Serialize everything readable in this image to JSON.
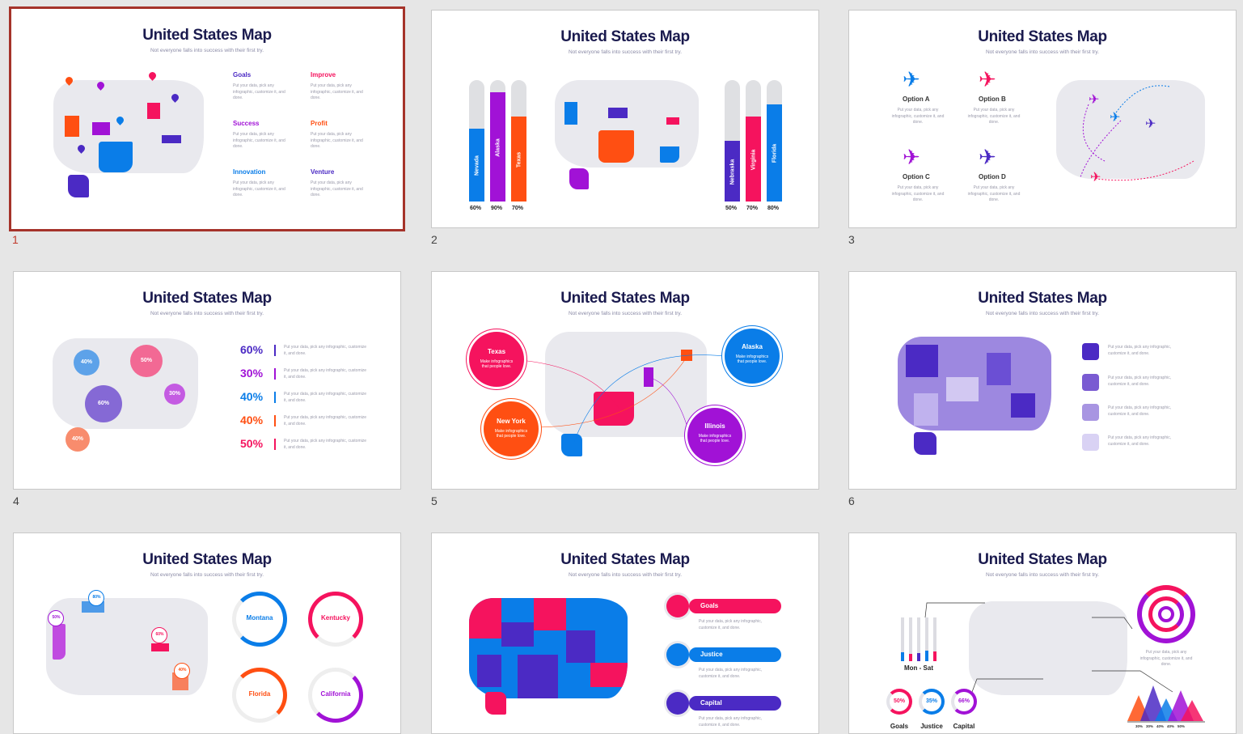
{
  "common": {
    "title": "United States Map",
    "subtitle": "Not everyone falls into success with their first try.",
    "desc_a": "Put your data, pick any infographic, customize it, and done.",
    "desc_b": "Make infographics that people love."
  },
  "colors": {
    "blue": "#0a7de8",
    "purple": "#4b2ac4",
    "violet": "#a112d6",
    "red": "#f5135e",
    "orange": "#ff4f12",
    "lightgray": "#e9e9ee",
    "selected_border": "#a5332a"
  },
  "slides": [
    {
      "num": "1",
      "selected": true,
      "labels": [
        "Goals",
        "Improve",
        "Success",
        "Profit",
        "Innovation",
        "Venture"
      ]
    },
    {
      "num": "2",
      "bars_left": [
        {
          "name": "Nevada",
          "value": 60,
          "pct": "60%"
        },
        {
          "name": "Alaska",
          "value": 90,
          "pct": "90%"
        },
        {
          "name": "Texas",
          "value": 70,
          "pct": "70%"
        }
      ],
      "bars_right": [
        {
          "name": "Nebraska",
          "value": 50,
          "pct": "50%"
        },
        {
          "name": "Virginia",
          "value": 70,
          "pct": "70%"
        },
        {
          "name": "Florida",
          "value": 80,
          "pct": "80%"
        }
      ]
    },
    {
      "num": "3",
      "options": [
        "Option A",
        "Option B",
        "Option C",
        "Option D"
      ]
    },
    {
      "num": "4",
      "bubbles": [
        "40%",
        "50%",
        "30%",
        "60%",
        "40%"
      ],
      "rows": [
        "60%",
        "30%",
        "40%",
        "40%",
        "50%"
      ]
    },
    {
      "num": "5",
      "states": [
        "Texas",
        "New York",
        "Alaska",
        "Illinois"
      ]
    },
    {
      "num": "6"
    },
    {
      "num": "7",
      "pins": [
        "80%",
        "50%",
        "60%",
        "40%"
      ],
      "rings": [
        "Montana",
        "Kentucky",
        "Florida",
        "California"
      ]
    },
    {
      "num": "8",
      "pills": [
        "Goals",
        "Justice",
        "Capital"
      ]
    },
    {
      "num": "9",
      "bars_label": "Mon - Sat",
      "donuts": [
        {
          "pct": "50%",
          "name": "Goals"
        },
        {
          "pct": "35%",
          "name": "Justice"
        },
        {
          "pct": "66%",
          "name": "Capital"
        }
      ],
      "tri_ticks": [
        "30%",
        "30%",
        "40%",
        "40%",
        "50%"
      ]
    }
  ]
}
